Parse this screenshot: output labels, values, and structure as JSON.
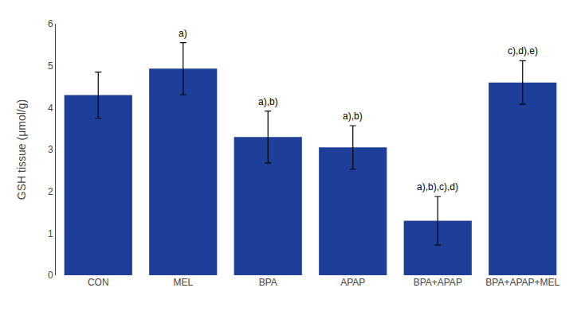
{
  "chart_data": {
    "type": "bar",
    "categories": [
      "CON",
      "MEL",
      "BPA",
      "APAP",
      "BPA+APAP",
      "BPA+APAP+MEL"
    ],
    "values": [
      4.3,
      4.93,
      3.3,
      3.05,
      1.3,
      4.6
    ],
    "errors": [
      0.55,
      0.62,
      0.62,
      0.52,
      0.58,
      0.52
    ],
    "annotations": [
      null,
      "a)",
      "a),b)",
      "a),b)",
      "a),b),c),d)",
      "c),d),e)"
    ],
    "color": "#1e3f99",
    "ylabel": "GSH tissue (μmol/g)",
    "ylim": [
      0,
      6
    ],
    "yticks": [
      0,
      1,
      2,
      3,
      4,
      5,
      6
    ],
    "grid": false
  }
}
